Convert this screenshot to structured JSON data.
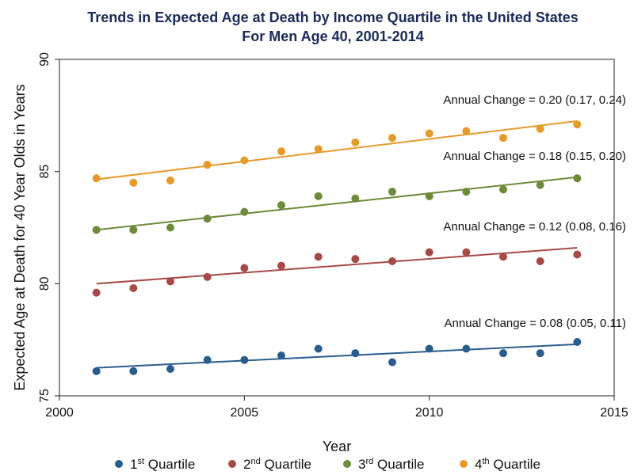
{
  "chart_data": {
    "type": "scatter",
    "title": "Trends in Expected Age at Death by Income Quartile in the United States",
    "subtitle": "For Men Age 40, 2001-2014",
    "xlabel": "Year",
    "ylabel": "Expected Age at Death for 40 Year Olds in Years",
    "xlim": [
      2000,
      2015
    ],
    "ylim": [
      75,
      90
    ],
    "xticks": [
      2000,
      2005,
      2010,
      2015
    ],
    "yticks": [
      75,
      80,
      85,
      90
    ],
    "x": [
      2001,
      2002,
      2003,
      2004,
      2005,
      2006,
      2007,
      2008,
      2009,
      2010,
      2011,
      2012,
      2013,
      2014
    ],
    "series": [
      {
        "name": "1st Quartile",
        "ordinal": "1",
        "suffix": "st",
        "label": "Quartile",
        "color": "#2a5d8f",
        "values": [
          76.1,
          76.1,
          76.2,
          76.6,
          76.6,
          76.8,
          77.1,
          76.9,
          76.5,
          77.1,
          77.1,
          76.9,
          76.9,
          77.4
        ],
        "fit": [
          76.25,
          77.3
        ],
        "annotation": "Annual Change = 0.08 (0.05, 0.11)"
      },
      {
        "name": "2nd Quartile",
        "ordinal": "2",
        "suffix": "nd",
        "label": "Quartile",
        "color": "#a64a48",
        "values": [
          79.6,
          79.8,
          80.1,
          80.3,
          80.7,
          80.8,
          81.2,
          81.1,
          81.0,
          81.4,
          81.4,
          81.2,
          81.0,
          81.3
        ],
        "fit": [
          80.0,
          81.6
        ],
        "annotation": "Annual Change = 0.12 (0.08, 0.16)"
      },
      {
        "name": "3rd Quartile",
        "ordinal": "3",
        "suffix": "rd",
        "label": "Quartile",
        "color": "#6d8b3a",
        "values": [
          82.4,
          82.4,
          82.5,
          82.9,
          83.2,
          83.5,
          83.9,
          83.8,
          84.1,
          83.9,
          84.1,
          84.2,
          84.4,
          84.7
        ],
        "fit": [
          82.4,
          84.75
        ],
        "annotation": "Annual Change = 0.18 (0.15, 0.20)"
      },
      {
        "name": "4th Quartile",
        "ordinal": "4",
        "suffix": "th",
        "label": "Quartile",
        "color": "#e69a2a",
        "values": [
          84.7,
          84.5,
          84.6,
          85.3,
          85.5,
          85.9,
          86.0,
          86.3,
          86.5,
          86.7,
          86.8,
          86.5,
          86.9,
          87.1
        ],
        "fit": [
          84.65,
          87.25
        ],
        "annotation": "Annual Change = 0.20 (0.17, 0.24)"
      }
    ]
  }
}
